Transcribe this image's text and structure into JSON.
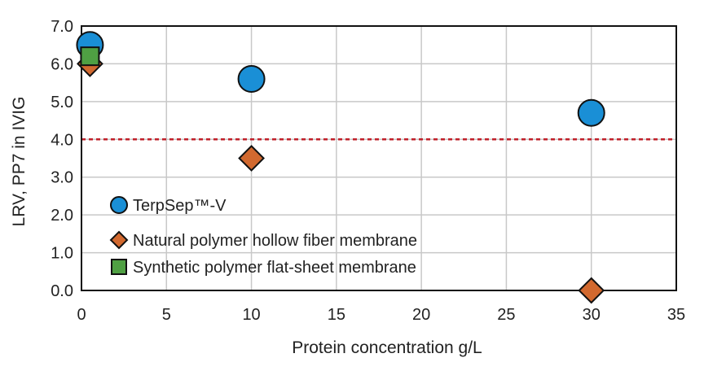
{
  "chart_data": {
    "type": "scatter",
    "title": "",
    "xlabel": "Protein concentration g/L",
    "ylabel": "LRV, PP7 in IVIG",
    "xlim": [
      0,
      35
    ],
    "ylim": [
      0,
      7
    ],
    "x_ticks": [
      "0",
      "5",
      "10",
      "15",
      "20",
      "25",
      "30",
      "35"
    ],
    "y_ticks": [
      "0.0",
      "1.0",
      "2.0",
      "3.0",
      "4.0",
      "5.0",
      "6.0",
      "7.0"
    ],
    "grid": true,
    "legend_position": "bottom-left",
    "reference_line": {
      "y": 4.0,
      "style": "dashed",
      "color": "#c0202a"
    },
    "series": [
      {
        "name": "TerpSep™-V",
        "marker": "circle",
        "color": "#1a8fd6",
        "points": [
          {
            "x": 0.5,
            "y": 6.5
          },
          {
            "x": 10,
            "y": 5.6
          },
          {
            "x": 30,
            "y": 4.7
          }
        ]
      },
      {
        "name": "Natural polymer hollow fiber membrane",
        "marker": "diamond",
        "color": "#d2692f",
        "points": [
          {
            "x": 0.5,
            "y": 6.0
          },
          {
            "x": 10,
            "y": 3.5
          },
          {
            "x": 30,
            "y": 0.0
          }
        ]
      },
      {
        "name": "Synthetic polymer flat-sheet membrane",
        "marker": "square",
        "color": "#4fa043",
        "points": [
          {
            "x": 0.5,
            "y": 6.2
          }
        ]
      }
    ]
  }
}
